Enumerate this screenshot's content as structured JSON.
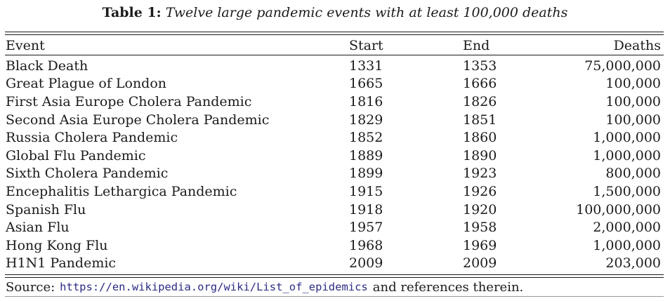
{
  "caption": {
    "label": "Table 1:",
    "text": "Twelve large pandemic events with at least 100,000 deaths"
  },
  "table": {
    "columns": [
      "Event",
      "Start",
      "End",
      "Deaths"
    ],
    "rows": [
      {
        "event": "Black Death",
        "start": "1331",
        "end": "1353",
        "deaths": "75,000,000"
      },
      {
        "event": "Great Plague of London",
        "start": "1665",
        "end": "1666",
        "deaths": "100,000"
      },
      {
        "event": "First Asia Europe Cholera Pandemic",
        "start": "1816",
        "end": "1826",
        "deaths": "100,000"
      },
      {
        "event": "Second Asia Europe Cholera Pandemic",
        "start": "1829",
        "end": "1851",
        "deaths": "100,000"
      },
      {
        "event": "Russia Cholera Pandemic",
        "start": "1852",
        "end": "1860",
        "deaths": "1,000,000"
      },
      {
        "event": "Global Flu Pandemic",
        "start": "1889",
        "end": "1890",
        "deaths": "1,000,000"
      },
      {
        "event": "Sixth Cholera Pandemic",
        "start": "1899",
        "end": "1923",
        "deaths": "800,000"
      },
      {
        "event": "Encephalitis Lethargica Pandemic",
        "start": "1915",
        "end": "1926",
        "deaths": "1,500,000"
      },
      {
        "event": "Spanish Flu",
        "start": "1918",
        "end": "1920",
        "deaths": "100,000,000"
      },
      {
        "event": "Asian Flu",
        "start": "1957",
        "end": "1958",
        "deaths": "2,000,000"
      },
      {
        "event": "Hong Kong Flu",
        "start": "1968",
        "end": "1969",
        "deaths": "1,000,000"
      },
      {
        "event": "H1N1 Pandemic",
        "start": "2009",
        "end": "2009",
        "deaths": "203,000"
      }
    ]
  },
  "footer": {
    "source_label": "Source:",
    "source_url": "https://en.wikipedia.org/wiki/List_of_epidemics",
    "source_suffix": "and references therein."
  },
  "colors": {
    "text": "#1b1b1b",
    "rule": "#1a1a1a",
    "faint_rule": "#9a9a9a",
    "link": "#2b2b85",
    "background": "#ffffff"
  }
}
